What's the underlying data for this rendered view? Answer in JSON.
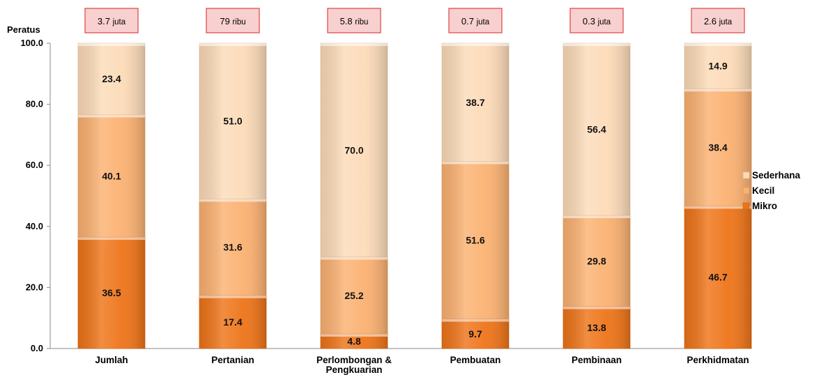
{
  "chart_data": {
    "type": "bar",
    "stacked": true,
    "percent_stacked": true,
    "ylabel": "Peratus",
    "ylim": [
      0,
      100
    ],
    "yticks": [
      "0.0",
      "20.0",
      "40.0",
      "60.0",
      "80.0",
      "100.0"
    ],
    "categories": [
      "Jumlah",
      "Pertanian",
      "Perlombongan & Pengkuarian",
      "Pembuatan",
      "Pembinaan",
      "Perkhidmatan"
    ],
    "category_lines": [
      [
        "Jumlah"
      ],
      [
        "Pertanian"
      ],
      [
        "Perlombongan &",
        "Pengkuarian"
      ],
      [
        "Pembuatan"
      ],
      [
        "Pembinaan"
      ],
      [
        "Perkhidmatan"
      ]
    ],
    "totals": [
      {
        "num": "3.7",
        "unit": "juta"
      },
      {
        "num": "79",
        "unit": "ribu"
      },
      {
        "num": "5.8",
        "unit": "ribu"
      },
      {
        "num": "0.7",
        "unit": "juta"
      },
      {
        "num": "0.3",
        "unit": "juta"
      },
      {
        "num": "2.6",
        "unit": "juta"
      }
    ],
    "series": [
      {
        "name": "Mikro",
        "color": "#ee7418",
        "values": [
          36.5,
          17.4,
          4.8,
          9.7,
          13.8,
          46.7
        ]
      },
      {
        "name": "Kecil",
        "color": "#fbb171",
        "values": [
          40.1,
          31.6,
          25.2,
          51.6,
          29.8,
          38.4
        ]
      },
      {
        "name": "Sederhana",
        "color": "#fcdbb8",
        "values": [
          23.4,
          51.0,
          70.0,
          38.7,
          56.4,
          14.9
        ]
      }
    ],
    "legend_position": "right",
    "grid": false,
    "colors": {
      "total_box_fill": "#f9d0d0",
      "total_box_border": "#e04040"
    }
  }
}
